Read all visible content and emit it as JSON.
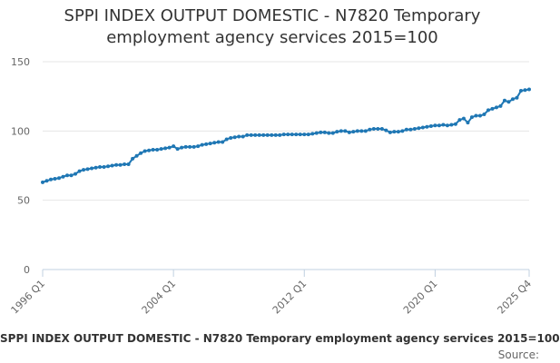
{
  "chart_data": {
    "type": "line",
    "title_line1": "SPPI INDEX OUTPUT DOMESTIC - N7820 Temporary",
    "title_line2": "employment agency services 2015=100",
    "xlabel": "",
    "ylabel": "",
    "ylim": [
      0,
      150
    ],
    "yticks": [
      "0",
      "50",
      "100",
      "150"
    ],
    "xticks": [
      "1996 Q1",
      "2004 Q1",
      "2012 Q1",
      "2020 Q1",
      "2025 Q4"
    ],
    "grid": true,
    "legend": "none",
    "line_color": "#1f77b4",
    "x_start": "1996 Q1",
    "x_end": "2025 Q4",
    "series": [
      {
        "values": [
          63,
          64,
          65,
          65.5,
          66,
          67,
          68,
          68,
          69,
          71,
          72,
          72.5,
          73,
          73.5,
          74,
          74,
          74.5,
          75,
          75.5,
          75.5,
          76,
          76,
          80,
          82,
          84,
          85.5,
          86,
          86.5,
          86.5,
          87,
          87.5,
          88,
          89,
          87,
          88,
          88.5,
          88.5,
          88.5,
          89,
          90,
          90.5,
          91,
          91.5,
          92,
          92,
          94,
          95,
          95.5,
          96,
          96,
          97,
          97,
          97,
          97,
          97,
          97,
          97,
          97,
          97,
          97.5,
          97.5,
          97.5,
          97.5,
          97.5,
          97.5,
          97.5,
          98,
          98.5,
          99,
          99,
          98.5,
          98.5,
          99.5,
          100,
          100,
          99,
          99.5,
          100,
          100,
          100,
          101,
          101.5,
          101.5,
          101.5,
          100.5,
          99,
          99.5,
          99.5,
          100,
          101,
          101,
          101.5,
          102,
          102.5,
          103,
          103.5,
          104,
          104,
          104.5,
          104,
          104.5,
          105,
          108,
          109,
          106,
          110,
          111,
          111,
          112,
          115,
          116,
          117,
          118,
          122,
          121,
          123,
          124,
          129,
          129.5,
          130
        ]
      }
    ]
  },
  "footer": {
    "title": "SPPI INDEX OUTPUT DOMESTIC - N7820 Temporary employment agency services 2015=100",
    "source": "Source: "
  }
}
